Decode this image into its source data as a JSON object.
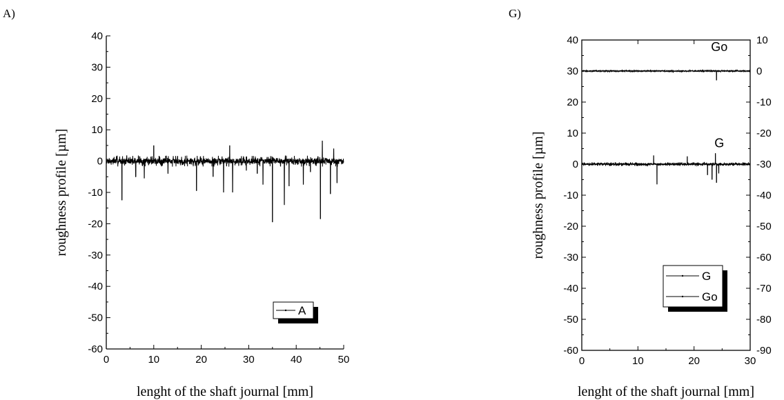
{
  "chart_data": [
    {
      "panel_label": "A)",
      "type": "line",
      "xlabel": "lenght of the shaft journal [mm]",
      "ylabel": "roughness profile [µm]",
      "xlim": [
        0,
        50
      ],
      "ylim": [
        -60,
        40
      ],
      "xticks": [
        0,
        10,
        20,
        30,
        40,
        50
      ],
      "yticks": [
        -60,
        -50,
        -40,
        -30,
        -20,
        -10,
        0,
        10,
        20,
        30,
        40
      ],
      "grid": false,
      "legend": {
        "placement": "bottom-right",
        "entries": [
          "A"
        ]
      },
      "series": [
        {
          "name": "A",
          "color": "#000000",
          "baseline": 0,
          "noise_amplitude": 1.8,
          "spikes": [
            {
              "x": 3.3,
              "y": -12.5
            },
            {
              "x": 6.2,
              "y": -5.0
            },
            {
              "x": 8.0,
              "y": -5.5
            },
            {
              "x": 10.0,
              "y": 5.0
            },
            {
              "x": 13.0,
              "y": -4.0
            },
            {
              "x": 19.0,
              "y": -9.5
            },
            {
              "x": 22.5,
              "y": -5.0
            },
            {
              "x": 24.7,
              "y": -10.0
            },
            {
              "x": 26.0,
              "y": 5.0
            },
            {
              "x": 26.6,
              "y": -10.0
            },
            {
              "x": 29.5,
              "y": -3.0
            },
            {
              "x": 31.8,
              "y": -4.0
            },
            {
              "x": 33.0,
              "y": -7.5
            },
            {
              "x": 35.0,
              "y": -19.5
            },
            {
              "x": 37.5,
              "y": -14.0
            },
            {
              "x": 38.5,
              "y": -8.0
            },
            {
              "x": 41.5,
              "y": -7.5
            },
            {
              "x": 43.0,
              "y": -3.5
            },
            {
              "x": 45.1,
              "y": -18.5
            },
            {
              "x": 45.5,
              "y": 6.5
            },
            {
              "x": 47.2,
              "y": -10.5
            },
            {
              "x": 48.6,
              "y": -7.0
            },
            {
              "x": 47.9,
              "y": 4.0
            }
          ]
        }
      ]
    },
    {
      "panel_label": "G)",
      "type": "line",
      "xlabel": "lenght of the shaft journal [mm]",
      "ylabel": "roughness profile [µm]",
      "xlim": [
        0,
        30
      ],
      "ylim": [
        -60,
        40
      ],
      "y2lim": [
        -90,
        10
      ],
      "xticks": [
        0,
        10,
        20,
        30
      ],
      "yticks": [
        -60,
        -50,
        -40,
        -30,
        -20,
        -10,
        0,
        10,
        20,
        30,
        40
      ],
      "y2ticks": [
        -90,
        -80,
        -70,
        -60,
        -50,
        -40,
        -30,
        -20,
        -10,
        0,
        10
      ],
      "grid": false,
      "legend": {
        "placement": "bottom-right",
        "entries": [
          "G",
          "Go"
        ]
      },
      "annotations": [
        {
          "text": "Go",
          "x": 24.5,
          "y": 36.5
        },
        {
          "text": "G",
          "x": 24.5,
          "y": 5.5
        }
      ],
      "series": [
        {
          "name": "G",
          "axis": "left",
          "color": "#000000",
          "baseline": 0,
          "noise_amplitude": 0.6,
          "spikes": [
            {
              "x": 13.4,
              "y": -6.5
            },
            {
              "x": 12.8,
              "y": 2.8
            },
            {
              "x": 18.8,
              "y": 2.5
            },
            {
              "x": 22.4,
              "y": -3.5
            },
            {
              "x": 23.2,
              "y": -5.0
            },
            {
              "x": 23.8,
              "y": 3.5
            },
            {
              "x": 24.0,
              "y": -6.0
            },
            {
              "x": 24.4,
              "y": -3.0
            }
          ]
        },
        {
          "name": "Go",
          "axis": "right",
          "color": "#000000",
          "baseline": 0,
          "noise_amplitude": 0.3,
          "spikes": [
            {
              "x": 24.0,
              "y": -3.0
            }
          ]
        }
      ]
    }
  ]
}
